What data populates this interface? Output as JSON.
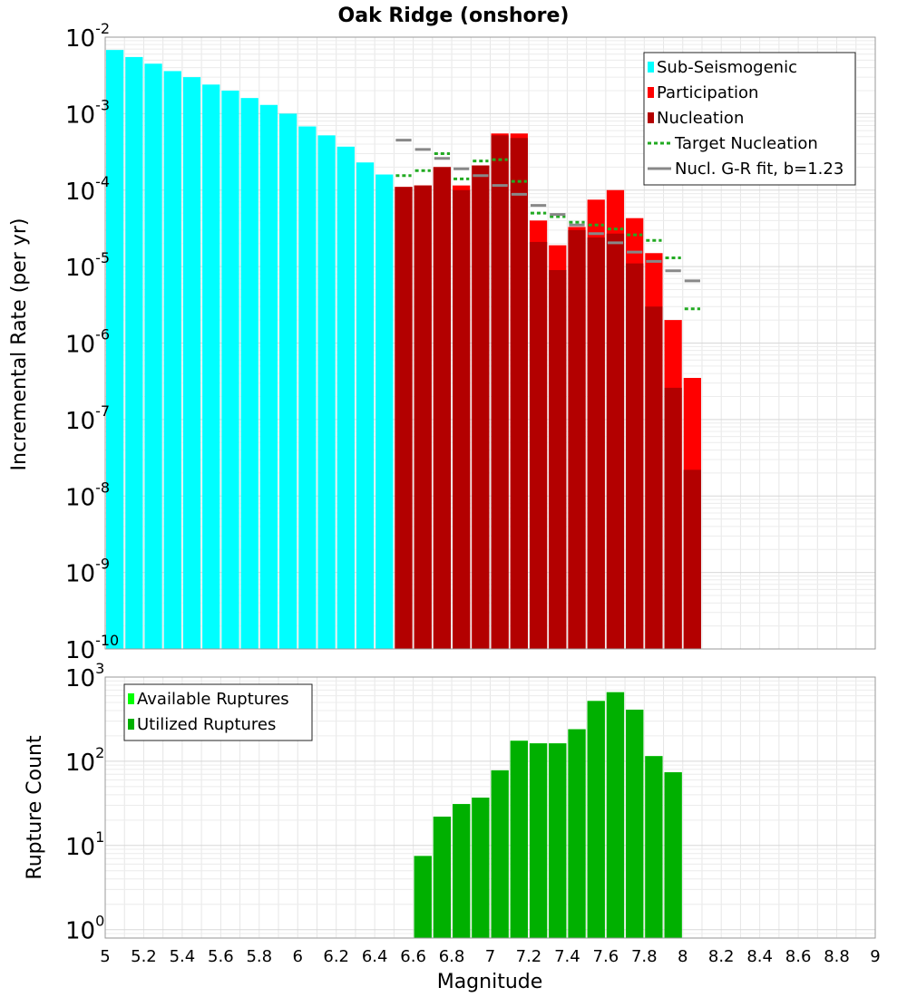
{
  "chart_data": {
    "type": "bar",
    "title": "Oak Ridge (onshore)",
    "xlabel": "Magnitude",
    "xlim": [
      5,
      9
    ],
    "x_ticks": [
      "5",
      "5.2",
      "5.4",
      "5.6",
      "5.8",
      "6",
      "6.2",
      "6.4",
      "6.6",
      "6.8",
      "7",
      "7.2",
      "7.4",
      "7.6",
      "7.8",
      "8",
      "8.2",
      "8.4",
      "8.6",
      "8.8",
      "9"
    ],
    "bin_width": 0.1,
    "panels": [
      {
        "name": "rate",
        "ylabel": "Incremental Rate (per yr)",
        "yscale": "log",
        "ylim_exp": [
          -10,
          -2
        ],
        "y_ticks": [
          {
            "base": "10",
            "exp": "-2"
          },
          {
            "base": "10",
            "exp": "-3"
          },
          {
            "base": "10",
            "exp": "-4"
          },
          {
            "base": "10",
            "exp": "-5"
          },
          {
            "base": "10",
            "exp": "-6"
          },
          {
            "base": "10",
            "exp": "-7"
          },
          {
            "base": "10",
            "exp": "-8"
          },
          {
            "base": "10",
            "exp": "-9"
          },
          {
            "base": "10",
            "exp": "-10"
          }
        ],
        "legend": [
          {
            "label": "Sub-Seismogenic",
            "color": "#00ffff",
            "style": "bar"
          },
          {
            "label": "Participation",
            "color": "#ff0000",
            "style": "bar"
          },
          {
            "label": "Nucleation",
            "color": "#b30000",
            "style": "bar"
          },
          {
            "label": "Target Nucleation",
            "color": "#22aa22",
            "style": "dotted"
          },
          {
            "label": "Nucl. G-R fit, b=1.23",
            "color": "#888888",
            "style": "line"
          }
        ],
        "series": [
          {
            "name": "Sub-Seismogenic",
            "kind": "bar",
            "color": "#00ffff",
            "x": [
              5.05,
              5.15,
              5.25,
              5.35,
              5.45,
              5.55,
              5.65,
              5.75,
              5.85,
              5.95,
              6.05,
              6.15,
              6.25,
              6.35,
              6.45
            ],
            "values": [
              0.0068,
              0.0055,
              0.0045,
              0.0036,
              0.003,
              0.0024,
              0.002,
              0.0016,
              0.0013,
              0.001,
              0.00068,
              0.00052,
              0.00037,
              0.00023,
              0.00016
            ]
          },
          {
            "name": "Participation",
            "kind": "bar",
            "color": "#ff0000",
            "x": [
              6.55,
              6.65,
              6.75,
              6.85,
              6.95,
              7.05,
              7.15,
              7.25,
              7.35,
              7.45,
              7.55,
              7.65,
              7.75,
              7.85,
              7.95,
              8.05
            ],
            "values": [
              0.00011,
              0.000115,
              0.0002,
              0.000115,
              0.00021,
              0.00055,
              0.00055,
              4e-05,
              1.9e-05,
              3.3e-05,
              7.5e-05,
              0.0001,
              4.3e-05,
              1.5e-05,
              2e-06,
              3.5e-07
            ]
          },
          {
            "name": "Nucleation",
            "kind": "bar",
            "color": "#b30000",
            "x": [
              6.55,
              6.65,
              6.75,
              6.85,
              6.95,
              7.05,
              7.15,
              7.25,
              7.35,
              7.45,
              7.55,
              7.65,
              7.75,
              7.85,
              7.95,
              8.05
            ],
            "values": [
              0.00011,
              0.000115,
              0.0002,
              0.0001,
              0.00021,
              0.00052,
              0.00048,
              2.1e-05,
              9e-06,
              3e-05,
              2.4e-05,
              2.7e-05,
              1.1e-05,
              3e-06,
              2.6e-07,
              2.2e-08
            ]
          },
          {
            "name": "Target Nucleation",
            "kind": "segments",
            "color": "#22aa22",
            "dash": "4,3",
            "x": [
              6.55,
              6.65,
              6.75,
              6.85,
              6.95,
              7.05,
              7.15,
              7.25,
              7.35,
              7.45,
              7.55,
              7.65,
              7.75,
              7.85,
              7.95,
              8.05
            ],
            "values": [
              0.000155,
              0.00018,
              0.0003,
              0.00014,
              0.00024,
              0.00025,
              0.00013,
              5e-05,
              4.5e-05,
              3.8e-05,
              3.5e-05,
              3.1e-05,
              2.6e-05,
              2.2e-05,
              1.3e-05,
              2.8e-06
            ]
          },
          {
            "name": "Nucl. G-R fit, b=1.23",
            "kind": "segments",
            "color": "#888888",
            "dash": "",
            "x": [
              6.55,
              6.65,
              6.75,
              6.85,
              6.95,
              7.05,
              7.15,
              7.25,
              7.35,
              7.45,
              7.55,
              7.65,
              7.75,
              7.85,
              7.95,
              8.05
            ],
            "values": [
              0.00045,
              0.00034,
              0.00026,
              0.00019,
              0.000155,
              0.000115,
              8.8e-05,
              6.3e-05,
              4.8e-05,
              3.5e-05,
              2.7e-05,
              2.05e-05,
              1.55e-05,
              1.17e-05,
              8.8e-06,
              6.5e-06
            ]
          }
        ]
      },
      {
        "name": "count",
        "ylabel": "Rupture Count",
        "yscale": "log",
        "ylim_exp": [
          -0.1,
          3
        ],
        "y_ticks": [
          {
            "base": "10",
            "exp": "3"
          },
          {
            "base": "10",
            "exp": "2"
          },
          {
            "base": "10",
            "exp": "1"
          },
          {
            "base": "10",
            "exp": "0"
          }
        ],
        "legend": [
          {
            "label": "Available Ruptures",
            "color": "#00ff00",
            "style": "bar"
          },
          {
            "label": "Utilized Ruptures",
            "color": "#00b000",
            "style": "bar"
          }
        ],
        "series": [
          {
            "name": "Available Ruptures",
            "kind": "bar",
            "color": "#00ff00",
            "x": [
              6.65,
              6.75,
              6.85,
              6.95,
              7.05,
              7.15,
              7.25,
              7.35,
              7.45,
              7.55,
              7.65,
              7.75,
              7.85,
              7.95
            ],
            "values": [
              7.5,
              22,
              31,
              37,
              78,
              175,
              163,
              163,
              240,
              520,
              660,
              410,
              115,
              74
            ]
          },
          {
            "name": "Utilized Ruptures",
            "kind": "bar",
            "color": "#00b000",
            "x": [
              6.65,
              6.75,
              6.85,
              6.95,
              7.05,
              7.15,
              7.25,
              7.35,
              7.45,
              7.55,
              7.65,
              7.75,
              7.85,
              7.95
            ],
            "values": [
              7.5,
              22,
              31,
              37,
              78,
              175,
              163,
              163,
              240,
              520,
              660,
              410,
              115,
              74
            ]
          }
        ]
      }
    ]
  }
}
